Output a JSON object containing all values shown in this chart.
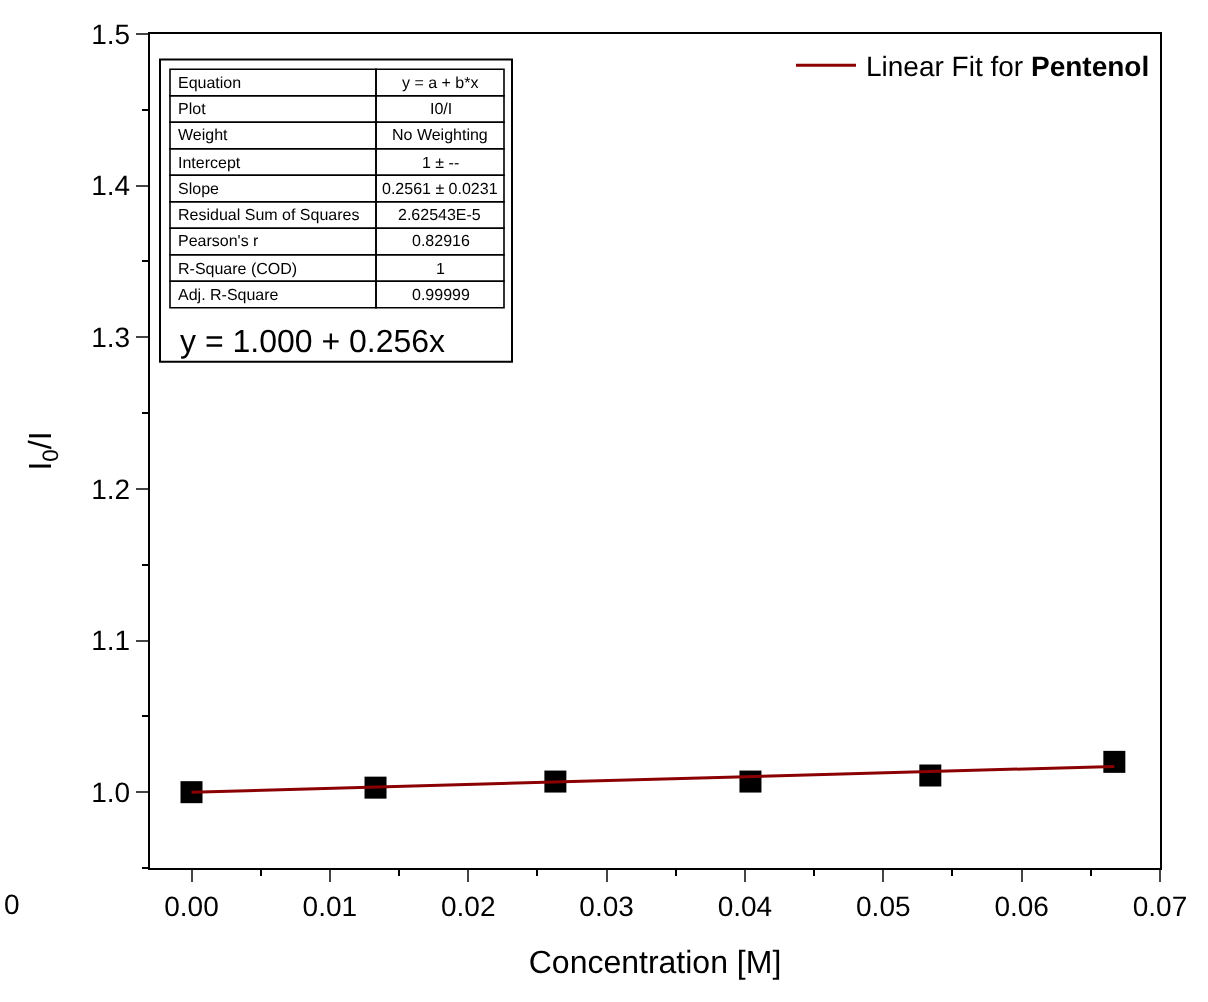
{
  "chart_data": {
    "type": "scatter",
    "xlabel": "Concentration [M]",
    "ylabel": "I$_{0}$/I",
    "xlim": [
      -0.003,
      0.07
    ],
    "xticks": [
      {
        "value": 0.0,
        "label": "0.00"
      },
      {
        "value": 0.01,
        "label": "0.01"
      },
      {
        "value": 0.02,
        "label": "0.02"
      },
      {
        "value": 0.03,
        "label": "0.03"
      },
      {
        "value": 0.04,
        "label": "0.04"
      },
      {
        "value": 0.05,
        "label": "0.05"
      },
      {
        "value": 0.06,
        "label": "0.06"
      },
      {
        "value": 0.07,
        "label": "0.07"
      }
    ],
    "ylim": [
      0.95,
      1.5
    ],
    "yticks": [
      {
        "value": 1.0,
        "label": "1.0"
      },
      1.1,
      1.2,
      1.3,
      1.4,
      1.5
    ],
    "x": [
      0.0,
      0.0133,
      0.0263,
      0.0404,
      0.0534,
      0.0667
    ],
    "series": [
      {
        "color": "#000000",
        "marker": "square",
        "values": [
          1.0,
          1.003,
          1.007,
          1.007,
          1.011,
          1.02
        ]
      },
      {
        "type": "line",
        "name": "Linear Fit for Pentenol",
        "color": "#8b0000",
        "marker": "none",
        "x": [
          0.0,
          0.0667
        ],
        "values": [
          1.0,
          1.017
        ]
      }
    ],
    "legend": "top right",
    "annotations": [
      "Equation",
      "y = a + b*x",
      "Plot",
      "I0/I",
      "Weight",
      "No Weighting",
      "Intercept",
      "1 ± --",
      "Slope",
      "0.2561 ± 0.0231",
      "Residual Sum of Squares",
      "2.62543E-5",
      "Pearson's r",
      "0.82916",
      "R-Square (COD)",
      "1",
      "Adj. R-Square",
      "0.99999",
      "y = 1.000 + 0.256x",
      "0"
    ]
  }
}
